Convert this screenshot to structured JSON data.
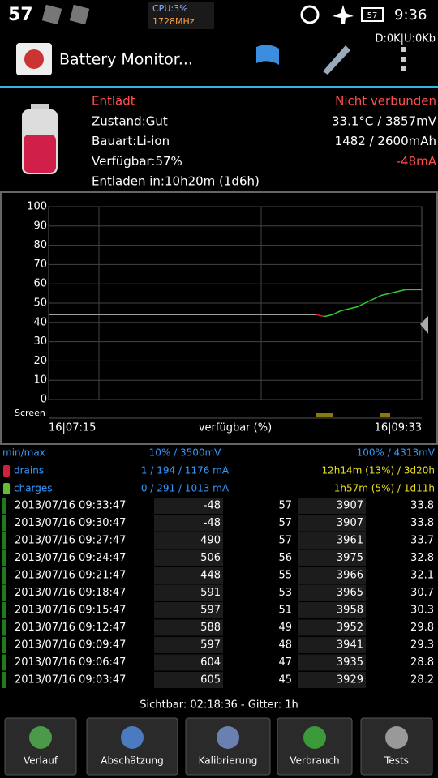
{
  "status_bar": {
    "signal": "57",
    "cpu": "CPU:3%",
    "freq": "1728MHz",
    "battery": "57",
    "time": "9:36",
    "net": "D:0K|U:0Kb"
  },
  "app_bar": {
    "title": "Battery Monitor..."
  },
  "info": {
    "rows": [
      [
        "Entlädt",
        "Nicht verbunden"
      ],
      [
        "Zustand:Gut",
        "33.1°C / 3857mV"
      ],
      [
        "Bauart:Li-ion",
        "1482 / 2600mAh"
      ],
      [
        "Verfügbar:57%",
        "-48mA"
      ]
    ],
    "estimate": "Entladen in:10h20m (1d6h)"
  },
  "chart_data": {
    "type": "line",
    "ylim": [
      0,
      100
    ],
    "yticks": [
      0,
      10,
      20,
      30,
      40,
      50,
      60,
      70,
      80,
      90,
      100
    ],
    "screen_label": "Screen",
    "x_start": "16|07:15",
    "x_label": "verfügbar (%)",
    "x_end": "16|09:33",
    "series": [
      {
        "color": "#9e9e9e",
        "values": [
          44,
          44,
          44,
          44,
          44,
          44,
          44,
          44,
          44,
          44,
          44,
          44,
          44,
          44,
          44,
          44,
          44,
          44,
          44,
          44,
          44,
          44,
          44,
          44,
          44,
          44,
          44,
          44,
          44,
          44,
          44,
          44,
          44,
          44,
          null,
          null,
          null,
          null,
          null,
          null,
          null,
          null,
          null,
          null,
          null,
          null,
          null
        ]
      },
      {
        "color": "#e02020",
        "values": [
          null,
          null,
          null,
          null,
          null,
          null,
          null,
          null,
          null,
          null,
          null,
          null,
          null,
          null,
          null,
          null,
          null,
          null,
          null,
          null,
          null,
          null,
          null,
          null,
          null,
          null,
          null,
          null,
          null,
          null,
          null,
          null,
          null,
          44,
          43,
          null,
          null,
          null,
          null,
          null,
          null,
          null,
          null,
          null,
          null,
          null,
          null
        ]
      },
      {
        "color": "#2ecc2e",
        "values": [
          null,
          null,
          null,
          null,
          null,
          null,
          null,
          null,
          null,
          null,
          null,
          null,
          null,
          null,
          null,
          null,
          null,
          null,
          null,
          null,
          null,
          null,
          null,
          null,
          null,
          null,
          null,
          null,
          null,
          null,
          null,
          null,
          null,
          null,
          43,
          44,
          46,
          47,
          48,
          50,
          52,
          54,
          55,
          56,
          57,
          57,
          57
        ]
      }
    ]
  },
  "stats": [
    [
      "min/max",
      "10% / 3500mV",
      "100% / 4313mV"
    ],
    [
      "drains",
      "1 / 194 / 1176 mA",
      "12h14m (13%) / 3d20h"
    ],
    [
      "charges",
      "0 / 291 / 1013 mA",
      "1h57m (5%) / 1d11h"
    ]
  ],
  "table": {
    "rows": [
      [
        "2013/07/16  09:33:47",
        -48,
        57,
        3907,
        33.8
      ],
      [
        "2013/07/16  09:30:47",
        -48,
        57,
        3907,
        33.8
      ],
      [
        "2013/07/16  09:27:47",
        490,
        57,
        3961,
        33.7
      ],
      [
        "2013/07/16  09:24:47",
        506,
        56,
        3975,
        32.8
      ],
      [
        "2013/07/16  09:21:47",
        448,
        55,
        3966,
        32.1
      ],
      [
        "2013/07/16  09:18:47",
        591,
        53,
        3965,
        30.7
      ],
      [
        "2013/07/16  09:15:47",
        597,
        51,
        3958,
        30.3
      ],
      [
        "2013/07/16  09:12:47",
        588,
        49,
        3952,
        29.8
      ],
      [
        "2013/07/16  09:09:47",
        597,
        48,
        3941,
        29.3
      ],
      [
        "2013/07/16  09:06:47",
        604,
        47,
        3935,
        28.8
      ],
      [
        "2013/07/16  09:03:47",
        605,
        45,
        3929,
        28.2
      ]
    ]
  },
  "footer": "Sichtbar: 02:18:36 - Gitter: 1h",
  "buttons": [
    "Verlauf",
    "Abschätzung",
    "Kalibrierung",
    "Verbrauch",
    "Tests"
  ]
}
